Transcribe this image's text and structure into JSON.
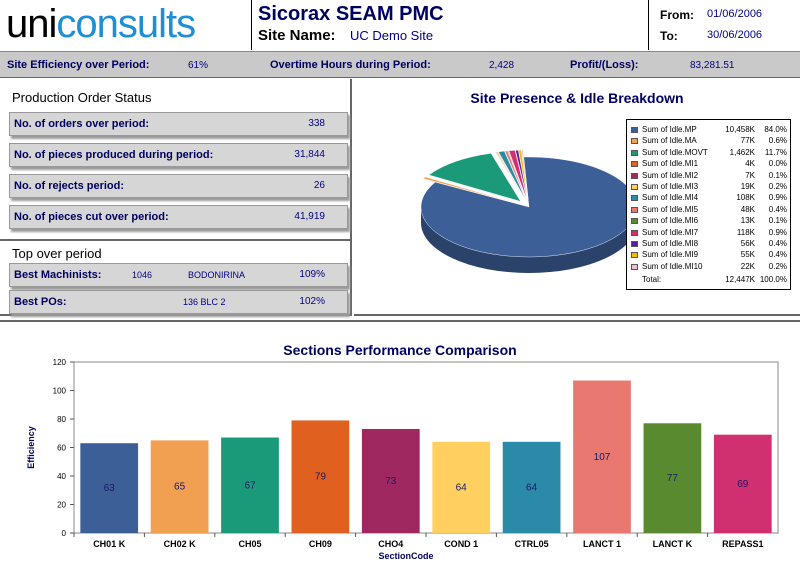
{
  "header": {
    "logo_uni": "uni",
    "logo_consults": "consults",
    "app_title": "Sicorax SEAM PMC",
    "site_label": "Site Name:",
    "site_value": "UC Demo Site",
    "from_label": "From:",
    "from_value": "01/06/2006",
    "to_label": "To:",
    "to_value": "30/06/2006"
  },
  "summary": {
    "efficiency_label": "Site Efficiency over Period:",
    "efficiency_value": "61%",
    "overtime_label": "Overtime Hours during Period:",
    "overtime_value": "2,428",
    "profit_label": "Profit/(Loss):",
    "profit_value": "83,281.51"
  },
  "production": {
    "title": "Production Order Status",
    "orders_label": "No. of orders over period:",
    "orders_value": "338",
    "pieces_label": "No. of pieces produced during period:",
    "pieces_value": "31,844",
    "rejects_label": "No. of rejects period:",
    "rejects_value": "26",
    "cut_label": "No. of pieces cut over period:",
    "cut_value": "41,919"
  },
  "top": {
    "title": "Top over period",
    "machinists_label": "Best Machinists:",
    "machinists_id": "1046",
    "machinists_name": "BODONIRINA",
    "machinists_value": "109%",
    "pos_label": "Best POs:",
    "pos_name": "136 BLC 2",
    "pos_value": "102%"
  },
  "pie": {
    "title": "Site Presence & Idle Breakdown",
    "legend": [
      {
        "name": "Sum of Idle.MP",
        "value": "10,458K",
        "pct": "84.0%",
        "color": "#3d5f98",
        "share": 84.0
      },
      {
        "name": "Sum of Idle.MA",
        "value": "77K",
        "pct": "0.6%",
        "color": "#f0a050",
        "share": 0.6
      },
      {
        "name": "Sum of Idle.MOVT",
        "value": "1,462K",
        "pct": "11.7%",
        "color": "#1a9a78",
        "share": 11.7
      },
      {
        "name": "Sum of Idle.MI1",
        "value": "4K",
        "pct": "0.0%",
        "color": "#e06020",
        "share": 0.03
      },
      {
        "name": "Sum of Idle.MI2",
        "value": "7K",
        "pct": "0.1%",
        "color": "#a02860",
        "share": 0.1
      },
      {
        "name": "Sum of Idle.MI3",
        "value": "19K",
        "pct": "0.2%",
        "color": "#ffd060",
        "share": 0.2
      },
      {
        "name": "Sum of Idle.MI4",
        "value": "108K",
        "pct": "0.9%",
        "color": "#2a8aa8",
        "share": 0.9
      },
      {
        "name": "Sum of Idle.MI5",
        "value": "48K",
        "pct": "0.4%",
        "color": "#e87870",
        "share": 0.4
      },
      {
        "name": "Sum of Idle.MI6",
        "value": "13K",
        "pct": "0.1%",
        "color": "#5a8a30",
        "share": 0.1
      },
      {
        "name": "Sum of Idle.MI7",
        "value": "118K",
        "pct": "0.9%",
        "color": "#d03070",
        "share": 0.9
      },
      {
        "name": "Sum of Idle.MI8",
        "value": "56K",
        "pct": "0.4%",
        "color": "#5a1a9a",
        "share": 0.4
      },
      {
        "name": "Sum of Idle.MI9",
        "value": "55K",
        "pct": "0.4%",
        "color": "#f0c000",
        "share": 0.4
      },
      {
        "name": "Sum of Idle.MI10",
        "value": "22K",
        "pct": "0.2%",
        "color": "#e8c0d8",
        "share": 0.2
      }
    ],
    "total_label": "Total:",
    "total_value": "12,447K",
    "total_pct": "100.0%"
  },
  "chart_data": {
    "type": "bar",
    "title": "Sections Performance Comparison",
    "xlabel": "SectionCode",
    "ylabel": "Efficiency",
    "ylim": [
      0,
      120
    ],
    "yticks": [
      0,
      20,
      40,
      60,
      80,
      100,
      120
    ],
    "categories": [
      "CH01 K",
      "CH02 K",
      "CH05",
      "CH09",
      "CHO4",
      "COND 1",
      "CTRL05",
      "LANCT 1",
      "LANCT K",
      "REPASS1"
    ],
    "values": [
      63,
      65,
      67,
      79,
      73,
      64,
      64,
      107,
      77,
      69
    ],
    "colors": [
      "#3d5f98",
      "#f0a050",
      "#1a9a78",
      "#e06020",
      "#a02860",
      "#ffd060",
      "#2a8aa8",
      "#e87870",
      "#5a8a30",
      "#d03070"
    ],
    "grid": false
  }
}
